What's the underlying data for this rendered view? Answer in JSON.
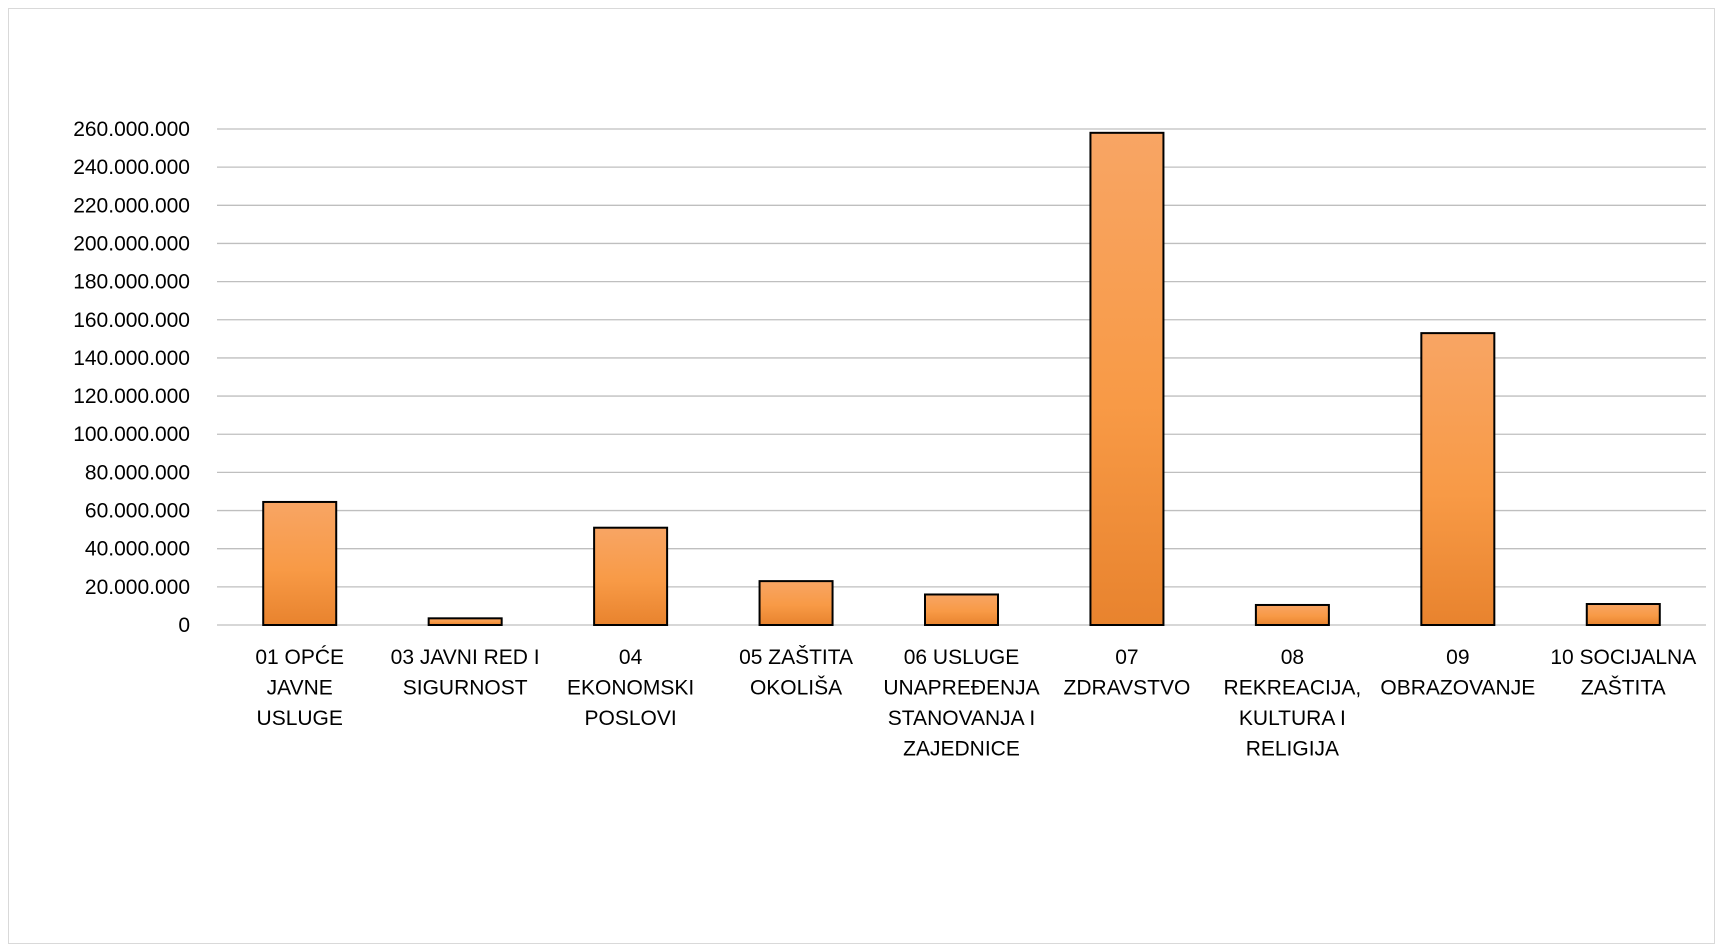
{
  "chart_data": {
    "type": "bar",
    "title": "",
    "xlabel": "",
    "ylabel": "",
    "ylim": [
      0,
      260000000
    ],
    "y_tick_step": 20000000,
    "y_tick_labels": [
      "0",
      "20.000.000",
      "40.000.000",
      "60.000.000",
      "80.000.000",
      "100.000.000",
      "120.000.000",
      "140.000.000",
      "160.000.000",
      "180.000.000",
      "200.000.000",
      "220.000.000",
      "240.000.000",
      "260.000.000"
    ],
    "grid": true,
    "legend": "none",
    "categories": [
      [
        "01 OPĆE",
        "JAVNE",
        "USLUGE"
      ],
      [
        "03 JAVNI RED I",
        "SIGURNOST"
      ],
      [
        "04",
        "EKONOMSKI",
        "POSLOVI"
      ],
      [
        "05 ZAŠTITA",
        "OKOLIŠA"
      ],
      [
        "06 USLUGE",
        "UNAPREĐENJA",
        "STANOVANJA I",
        "ZAJEDNICE"
      ],
      [
        "07",
        "ZDRAVSTVO"
      ],
      [
        "08",
        "REKREACIJA,",
        "KULTURA I",
        "RELIGIJA"
      ],
      [
        "09",
        "OBRAZOVANJE"
      ],
      [
        "10 SOCIJALNA",
        "ZAŠTITA"
      ]
    ],
    "values": [
      64500000,
      3500000,
      51000000,
      23000000,
      16000000,
      258000000,
      10500000,
      153000000,
      11000000
    ],
    "colors": {
      "bar_top": "#f8a564",
      "bar_mid": "#f89a46",
      "bar_bottom": "#e8832e",
      "bar_stroke": "#000000",
      "grid": "#bfbfbf",
      "frame": "#d9d9d9"
    }
  }
}
